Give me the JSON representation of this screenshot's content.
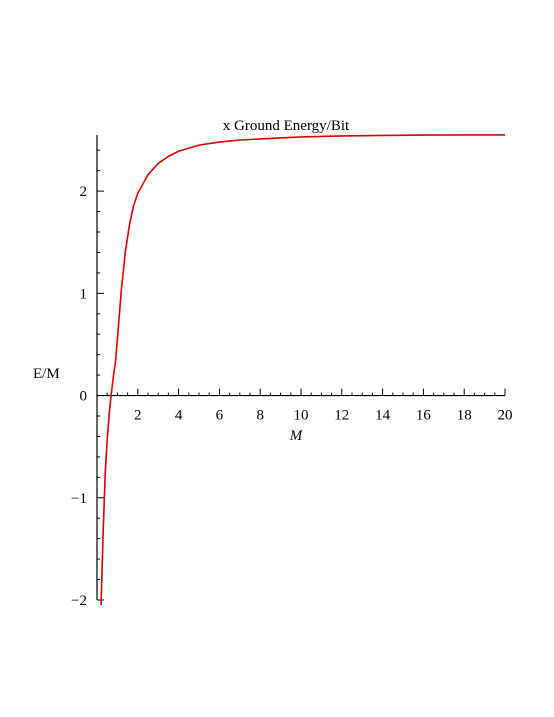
{
  "chart_data": {
    "type": "line",
    "title": "x Ground Energy/Bit",
    "xlabel": "M",
    "ylabel": "E/M",
    "xlim": [
      0,
      20
    ],
    "ylim": [
      -2,
      2.5
    ],
    "x_ticks": [
      2,
      4,
      6,
      8,
      10,
      12,
      14,
      16,
      18,
      20
    ],
    "y_ticks": [
      -2,
      -1,
      0,
      1,
      2
    ],
    "grid": false,
    "legend": "none",
    "series": [
      {
        "color": "#e00000",
        "x": [
          0.2,
          0.3,
          0.4,
          0.5,
          0.6,
          0.7,
          0.8,
          0.9,
          1.0,
          1.2,
          1.4,
          1.6,
          1.8,
          2.0,
          2.5,
          3,
          3.5,
          4,
          5,
          6,
          7,
          8,
          10,
          12,
          14,
          16,
          18,
          20
        ],
        "y": [
          -2.05,
          -1.35,
          -0.77,
          -0.43,
          -0.18,
          0.02,
          0.18,
          0.32,
          0.55,
          1.05,
          1.42,
          1.68,
          1.86,
          1.98,
          2.16,
          2.27,
          2.34,
          2.39,
          2.45,
          2.48,
          2.5,
          2.51,
          2.53,
          2.54,
          2.545,
          2.548,
          2.55,
          2.55
        ]
      }
    ]
  }
}
